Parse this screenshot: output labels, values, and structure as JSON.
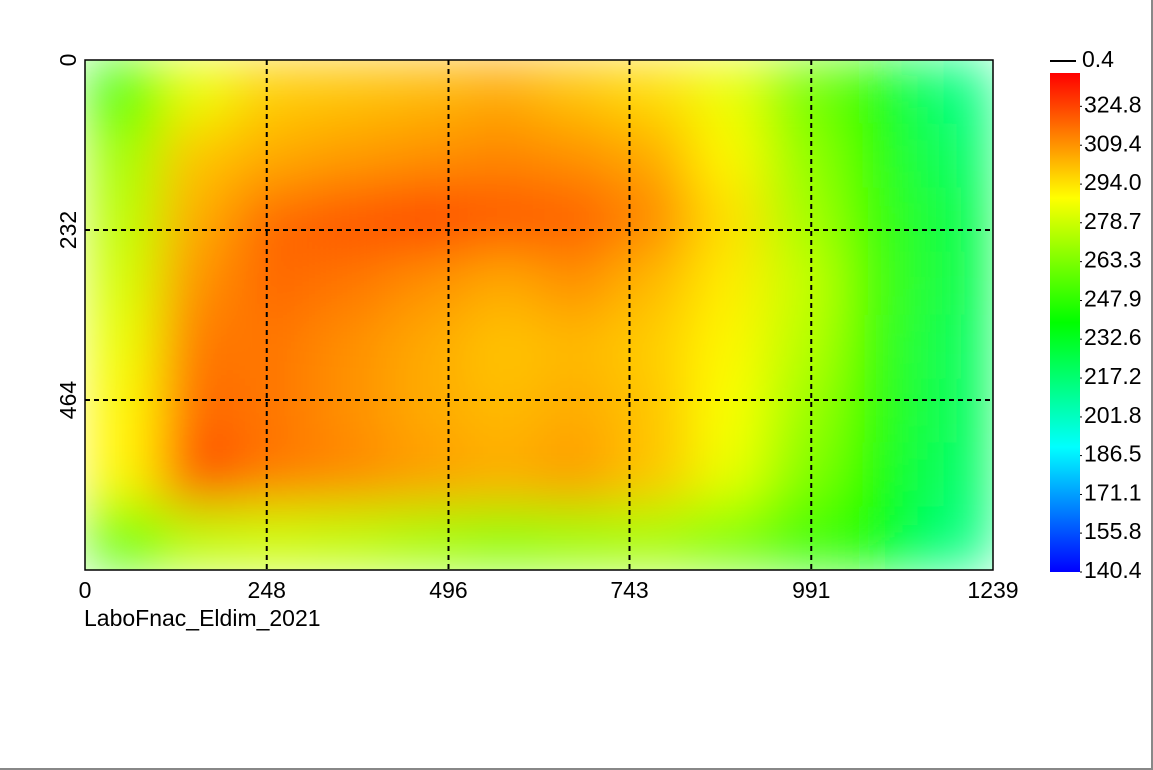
{
  "chart_data": {
    "type": "heatmap",
    "title": "LaboFnac_Eldim_2021",
    "xlim": [
      0,
      1239
    ],
    "ylim": [
      0,
      696
    ],
    "y_inverted": true,
    "xticks": [
      0,
      248,
      496,
      743,
      991,
      1239
    ],
    "yticks": [
      0,
      232,
      464
    ],
    "grid": true,
    "clim": [
      140.4,
      338
    ],
    "colormap": [
      "#0000ff",
      "#00ffff",
      "#00ff00",
      "#ffff00",
      "#ff0000"
    ],
    "cticks": [
      324.8,
      309.4,
      {
        "value": 294,
        "label": "294.0"
      },
      278.7,
      263.3,
      247.9,
      232.6,
      217.2,
      201.8,
      186.5,
      171.1,
      155.8,
      140.4
    ],
    "line_legend": 0.4,
    "z": [
      [
        250,
        285,
        298,
        300,
        302,
        305,
        300,
        295,
        285,
        262,
        245,
        215
      ],
      [
        270,
        300,
        305,
        308,
        310,
        312,
        310,
        305,
        290,
        268,
        248,
        220
      ],
      [
        275,
        305,
        318,
        322,
        325,
        322,
        320,
        312,
        295,
        272,
        250,
        225
      ],
      [
        280,
        310,
        318,
        315,
        310,
        305,
        310,
        302,
        292,
        278,
        252,
        225
      ],
      [
        285,
        315,
        315,
        310,
        305,
        300,
        302,
        298,
        290,
        275,
        250,
        222
      ],
      [
        290,
        318,
        315,
        310,
        305,
        302,
        305,
        300,
        288,
        270,
        248,
        222
      ],
      [
        290,
        325,
        315,
        312,
        308,
        305,
        308,
        300,
        285,
        265,
        245,
        220
      ],
      [
        255,
        275,
        278,
        275,
        270,
        265,
        268,
        270,
        262,
        250,
        240,
        215
      ]
    ]
  }
}
